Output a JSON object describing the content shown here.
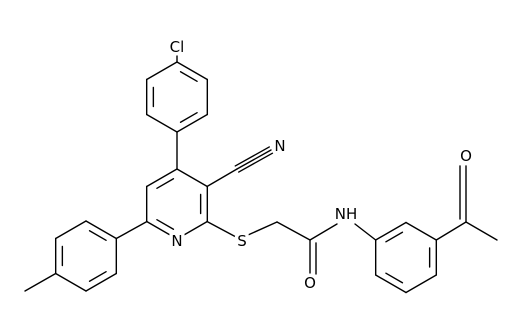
{
  "atoms": [
    "Cl",
    "N",
    "N",
    "S",
    "O",
    "NH",
    "O"
  ]
}
